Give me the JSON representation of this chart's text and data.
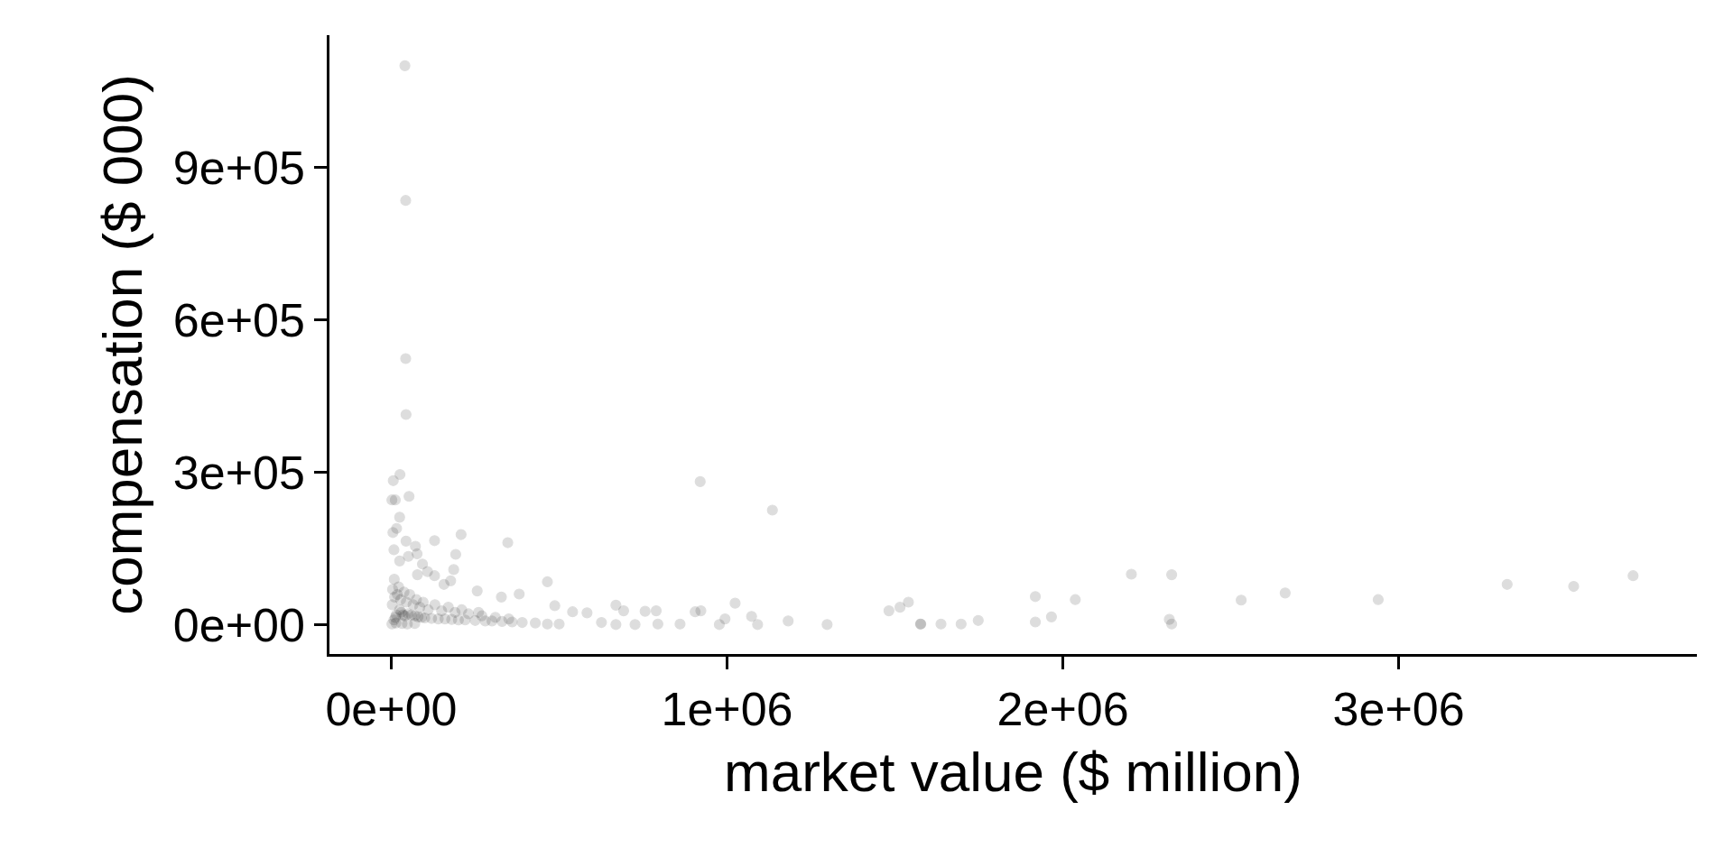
{
  "chart_data": {
    "type": "scatter",
    "xlabel": "market value ($ million)",
    "ylabel": "compensation ($ 000)",
    "x": [
      40700,
      43000,
      43000,
      44000,
      26000,
      6000,
      2000,
      12000,
      53000,
      25000,
      5000,
      16000,
      129000,
      208000,
      347000,
      44000,
      72000,
      8000,
      77000,
      192000,
      51000,
      25000,
      93000,
      186000,
      108000,
      129000,
      78000,
      465000,
      256000,
      157000,
      177000,
      328000,
      381000,
      920000,
      1135000,
      1024000,
      669000,
      692000,
      756000,
      789000,
      905000,
      922000,
      1073000,
      994000,
      1182000,
      1298000,
      860000,
      977000,
      1091000,
      794000,
      726000,
      669000,
      626000,
      583000,
      540000,
      487000,
      465000,
      500000,
      429000,
      1482000,
      1515000,
      1540000,
      1576000,
      1577000,
      1637000,
      1697000,
      1748000,
      1918000,
      1918000,
      1966000,
      2037000,
      2204000,
      2324000,
      2317000,
      2324000,
      2531000,
      2662000,
      2939000,
      3323000,
      3521000,
      3698000,
      2000,
      8000,
      12000,
      15000,
      25000,
      30000,
      35000,
      40000,
      50000,
      60000,
      70000,
      80000,
      90000,
      100000,
      120000,
      140000,
      160000,
      180000,
      200000,
      220000,
      250000,
      280000,
      300000,
      330000,
      360000,
      390000,
      3000,
      10000,
      18000,
      28000,
      45000,
      65000,
      85000,
      110000,
      150000,
      190000,
      230000,
      270000,
      310000,
      350000,
      4000,
      9000,
      22000,
      38000,
      55000,
      75000,
      95000,
      130000,
      170000,
      210000,
      260000,
      14000,
      32000,
      48000,
      70000
    ],
    "values": [
      1100000,
      835000,
      524000,
      414000,
      296000,
      284000,
      246000,
      246000,
      253000,
      212000,
      182000,
      190000,
      166000,
      178000,
      162000,
      165000,
      155000,
      148000,
      140000,
      139000,
      135000,
      126000,
      120000,
      109000,
      105000,
      97000,
      99000,
      85000,
      67000,
      80000,
      87000,
      55000,
      61000,
      282000,
      226000,
      43000,
      39000,
      28000,
      27000,
      28000,
      26000,
      28000,
      17000,
      12000,
      8000,
      1000,
      2000,
      1000,
      1000,
      2000,
      1000,
      1000,
      5000,
      24000,
      26000,
      38000,
      2000,
      2000,
      4000,
      28000,
      35000,
      45000,
      2000,
      2000,
      2000,
      2000,
      9000,
      56000,
      6000,
      16000,
      50000,
      100000,
      99000,
      11000,
      2000,
      49000,
      63000,
      50000,
      80000,
      76000,
      97000,
      2000,
      10000,
      15000,
      20000,
      30000,
      25000,
      20000,
      18000,
      22000,
      20000,
      18000,
      16000,
      15000,
      14000,
      13000,
      12000,
      12000,
      11000,
      10000,
      10000,
      9000,
      8000,
      8000,
      7000,
      6000,
      5000,
      40000,
      55000,
      60000,
      50000,
      45000,
      40000,
      35000,
      30000,
      28000,
      25000,
      22000,
      18000,
      15000,
      12000,
      70000,
      90000,
      75000,
      65000,
      60000,
      50000,
      45000,
      40000,
      35000,
      30000,
      25000,
      4000,
      3000,
      2000,
      3000
    ],
    "color": "#000000",
    "xlim": [
      -184000,
      3888000
    ],
    "ylim": [
      -57000,
      1160000
    ],
    "xticks": [
      {
        "value": 0,
        "label": "0e+00"
      },
      {
        "value": 1000000,
        "label": "1e+06"
      },
      {
        "value": 2000000,
        "label": "2e+06"
      },
      {
        "value": 3000000,
        "label": "3e+06"
      }
    ],
    "yticks": [
      {
        "value": 0,
        "label": "0e+00"
      },
      {
        "value": 300000,
        "label": "3e+05"
      },
      {
        "value": 600000,
        "label": "6e+05"
      },
      {
        "value": 900000,
        "label": "9e+05"
      }
    ],
    "grid": false,
    "marker": "circle"
  }
}
